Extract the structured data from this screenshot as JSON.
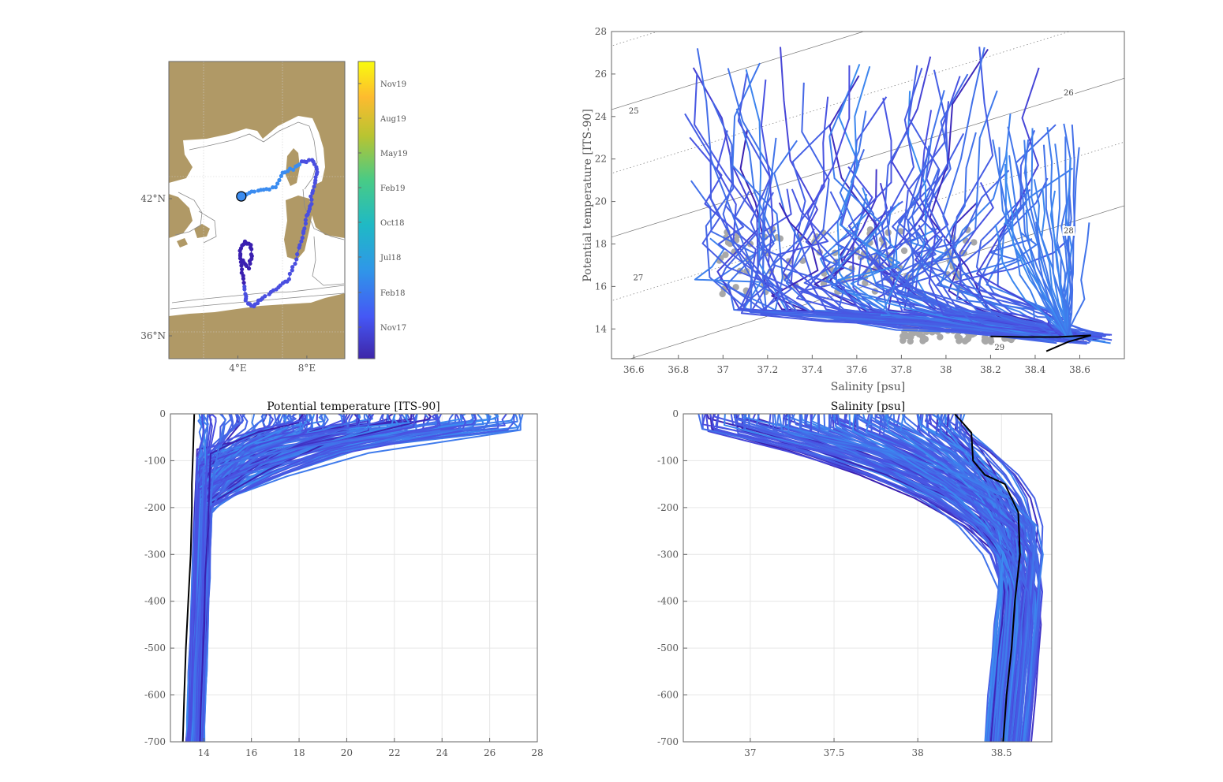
{
  "colors": {
    "land": "#b09966",
    "sea": "#ffffff",
    "profile_dark": "#3a1fb0",
    "profile_mid": "#4a4fe0",
    "profile_light": "#3b8cf0",
    "mean_profile": "#000000",
    "climatology_points": "#a8a8a8",
    "grid": "#e6e6e6",
    "axis": "#666666"
  },
  "chart_data": [
    {
      "type": "scatter",
      "panel": "map",
      "xticks": [
        "4°E",
        "8°E"
      ],
      "xtick_values": [
        4,
        8
      ],
      "yticks": [
        "36°N",
        "42°N"
      ],
      "ytick_values": [
        36,
        42
      ],
      "xlim": [
        0,
        10.2
      ],
      "ylim": [
        35.0,
        48.0
      ],
      "colorbar": {
        "ticks": [
          "Nov19",
          "Aug19",
          "May19",
          "Feb19",
          "Oct18",
          "Jul18",
          "Feb18",
          "Nov17"
        ],
        "colormap": [
          "#3e26a8",
          "#4557f5",
          "#2f97e8",
          "#1fb9c5",
          "#48cb86",
          "#b9c431",
          "#fdbb2f",
          "#f9fb0e"
        ]
      },
      "deployment_marker": [
        4.2,
        42.1
      ],
      "track": [
        [
          4.2,
          42.1
        ],
        [
          4.8,
          42.3
        ],
        [
          5.5,
          42.4
        ],
        [
          6.2,
          42.5
        ],
        [
          6.6,
          43.1
        ],
        [
          7.2,
          43.3
        ],
        [
          7.7,
          43.6
        ],
        [
          8.3,
          43.7
        ],
        [
          8.6,
          43.3
        ],
        [
          8.5,
          42.8
        ],
        [
          8.3,
          42.2
        ],
        [
          8.2,
          41.7
        ],
        [
          8.0,
          41.2
        ],
        [
          7.8,
          40.6
        ],
        [
          7.6,
          40.0
        ],
        [
          7.3,
          39.2
        ],
        [
          7.0,
          38.5
        ],
        [
          6.5,
          38.2
        ],
        [
          5.9,
          37.9
        ],
        [
          5.3,
          37.6
        ],
        [
          4.9,
          37.3
        ],
        [
          4.5,
          37.5
        ],
        [
          4.4,
          38.0
        ],
        [
          4.3,
          38.6
        ],
        [
          4.2,
          39.2
        ],
        [
          4.1,
          39.7
        ],
        [
          4.4,
          40.1
        ],
        [
          4.7,
          40.0
        ],
        [
          4.8,
          39.5
        ],
        [
          4.6,
          39.0
        ],
        [
          4.3,
          39.3
        ]
      ]
    },
    {
      "type": "line",
      "panel": "ts-diagram",
      "xlabel": "Salinity [psu]",
      "ylabel": "Potential temperature [ITS-90]",
      "xlim": [
        36.5,
        38.8
      ],
      "ylim": [
        12.6,
        28
      ],
      "xticks": [
        36.6,
        36.8,
        37,
        37.2,
        37.4,
        37.6,
        37.8,
        38,
        38.2,
        38.4,
        38.6
      ],
      "xtick_labels": [
        "36.6",
        "36.8",
        "37",
        "37.2",
        "37.4",
        "37.6",
        "37.8",
        "38",
        "38.2",
        "38.4",
        "38.6"
      ],
      "yticks": [
        14,
        16,
        18,
        20,
        22,
        24,
        26,
        28
      ],
      "ytick_labels": [
        "14",
        "16",
        "18",
        "20",
        "22",
        "24",
        "26",
        "28"
      ],
      "isopycnal_labels": [
        {
          "label": "25",
          "s": 36.6,
          "t": 24.15
        },
        {
          "label": "26",
          "s": 38.55,
          "t": 25.0
        },
        {
          "label": "27",
          "s": 36.62,
          "t": 16.3
        },
        {
          "label": "28",
          "s": 38.55,
          "t": 18.5
        },
        {
          "label": "29",
          "s": 38.24,
          "t": 13.0
        }
      ],
      "mean_profile": [
        [
          38.2,
          13.65
        ],
        [
          38.35,
          13.62
        ],
        [
          38.5,
          13.62
        ],
        [
          38.65,
          13.7
        ],
        [
          38.55,
          13.4
        ],
        [
          38.45,
          12.95
        ]
      ]
    },
    {
      "type": "line",
      "panel": "temperature-profile",
      "title": "Potential temperature [ITS-90]",
      "xlim": [
        12.6,
        28
      ],
      "ylim": [
        -700,
        0
      ],
      "xticks": [
        14,
        16,
        18,
        20,
        22,
        24,
        26,
        28
      ],
      "xtick_labels": [
        "14",
        "16",
        "18",
        "20",
        "22",
        "24",
        "26",
        "28"
      ],
      "yticks": [
        0,
        -100,
        -200,
        -300,
        -400,
        -500,
        -600,
        -700
      ],
      "ytick_labels": [
        "0",
        "-100",
        "-200",
        "-300",
        "-400",
        "-500",
        "-600",
        "-700"
      ],
      "mean_profile": [
        [
          13.6,
          0
        ],
        [
          13.55,
          -80
        ],
        [
          13.5,
          -150
        ],
        [
          13.5,
          -200
        ],
        [
          13.45,
          -300
        ],
        [
          13.35,
          -400
        ],
        [
          13.25,
          -500
        ],
        [
          13.18,
          -600
        ],
        [
          13.12,
          -700
        ]
      ]
    },
    {
      "type": "line",
      "panel": "salinity-profile",
      "title": "Salinity [psu]",
      "xlim": [
        36.6,
        38.8
      ],
      "ylim": [
        -700,
        0
      ],
      "xticks": [
        37,
        37.5,
        38,
        38.5
      ],
      "xtick_labels": [
        "37",
        "37.5",
        "38",
        "38.5"
      ],
      "yticks": [
        0,
        -100,
        -200,
        -300,
        -400,
        -500,
        -600,
        -700
      ],
      "ytick_labels": [
        "0",
        "-100",
        "-200",
        "-300",
        "-400",
        "-500",
        "-600",
        "-700"
      ],
      "mean_profile": [
        [
          38.22,
          0
        ],
        [
          38.32,
          -40
        ],
        [
          38.33,
          -100
        ],
        [
          38.4,
          -130
        ],
        [
          38.52,
          -150
        ],
        [
          38.6,
          -210
        ],
        [
          38.61,
          -300
        ],
        [
          38.58,
          -400
        ],
        [
          38.56,
          -500
        ],
        [
          38.53,
          -600
        ],
        [
          38.51,
          -700
        ]
      ]
    }
  ]
}
